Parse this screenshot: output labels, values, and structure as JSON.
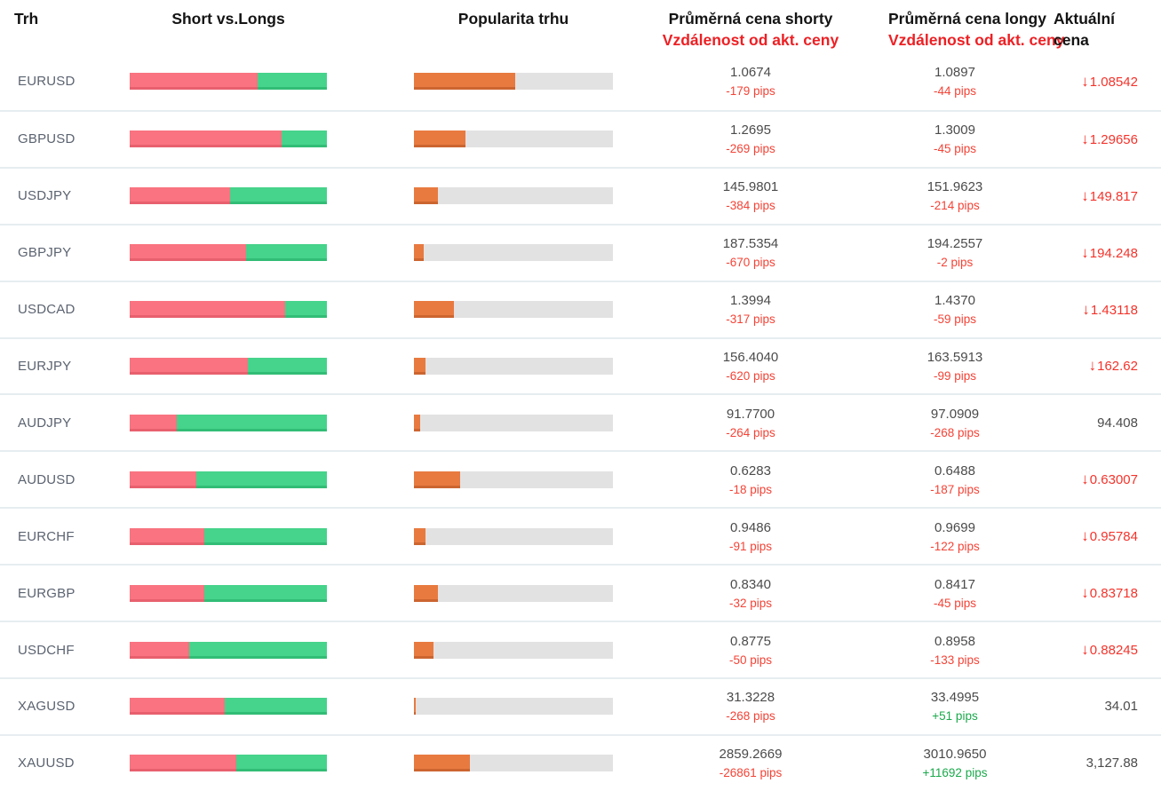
{
  "header": {
    "col_market": "Trh",
    "col_short_vs_longs": "Short vs.Longs",
    "col_popularity": "Popularita trhu",
    "col_avg_short_line1": "Průměrná cena shorty",
    "col_avg_short_line2": "Vzdálenost od akt. ceny",
    "col_avg_long_line1": "Průměrná cena longy",
    "col_avg_long_line2": "Vzdálenost od akt. ceny",
    "col_current_line1": "Aktuální",
    "col_current_line2": "cena"
  },
  "colors": {
    "bar_short_red": "#f97380",
    "bar_long_green": "#46d38b",
    "bar_popularity_orange": "#e87a40",
    "bar_track_gray": "#e2e2e2",
    "pips_negative_red": "#f44336",
    "pips_positive_green": "#1ba94c",
    "header_subtitle_red": "#ed2024",
    "current_price_down_red": "#f4332b",
    "price_text": "#4b4b4b",
    "market_label_text": "#5b6370"
  },
  "icons": {
    "down_arrow": "↓"
  },
  "rows": [
    {
      "market": "EURUSD",
      "short_pct": 65,
      "popularity_pct": 51,
      "avg_short_price": "1.0674",
      "avg_short_pips": "-179 pips",
      "avg_long_price": "1.0897",
      "avg_long_pips": "-44 pips",
      "current_price": "1.08542",
      "current_dir": "down"
    },
    {
      "market": "GBPUSD",
      "short_pct": 77,
      "popularity_pct": 26,
      "avg_short_price": "1.2695",
      "avg_short_pips": "-269 pips",
      "avg_long_price": "1.3009",
      "avg_long_pips": "-45 pips",
      "current_price": "1.29656",
      "current_dir": "down"
    },
    {
      "market": "USDJPY",
      "short_pct": 51,
      "popularity_pct": 12,
      "avg_short_price": "145.9801",
      "avg_short_pips": "-384 pips",
      "avg_long_price": "151.9623",
      "avg_long_pips": "-214 pips",
      "current_price": "149.817",
      "current_dir": "down"
    },
    {
      "market": "GBPJPY",
      "short_pct": 59,
      "popularity_pct": 5,
      "avg_short_price": "187.5354",
      "avg_short_pips": "-670 pips",
      "avg_long_price": "194.2557",
      "avg_long_pips": "-2 pips",
      "current_price": "194.248",
      "current_dir": "down"
    },
    {
      "market": "USDCAD",
      "short_pct": 79,
      "popularity_pct": 20,
      "avg_short_price": "1.3994",
      "avg_short_pips": "-317 pips",
      "avg_long_price": "1.4370",
      "avg_long_pips": "-59 pips",
      "current_price": "1.43118",
      "current_dir": "down"
    },
    {
      "market": "EURJPY",
      "short_pct": 60,
      "popularity_pct": 6,
      "avg_short_price": "156.4040",
      "avg_short_pips": "-620 pips",
      "avg_long_price": "163.5913",
      "avg_long_pips": "-99 pips",
      "current_price": "162.62",
      "current_dir": "down"
    },
    {
      "market": "AUDJPY",
      "short_pct": 24,
      "popularity_pct": 3,
      "avg_short_price": "91.7700",
      "avg_short_pips": "-264 pips",
      "avg_long_price": "97.0909",
      "avg_long_pips": "-268 pips",
      "current_price": "94.408",
      "current_dir": "flat"
    },
    {
      "market": "AUDUSD",
      "short_pct": 34,
      "popularity_pct": 23,
      "avg_short_price": "0.6283",
      "avg_short_pips": "-18 pips",
      "avg_long_price": "0.6488",
      "avg_long_pips": "-187 pips",
      "current_price": "0.63007",
      "current_dir": "down"
    },
    {
      "market": "EURCHF",
      "short_pct": 38,
      "popularity_pct": 6,
      "avg_short_price": "0.9486",
      "avg_short_pips": "-91 pips",
      "avg_long_price": "0.9699",
      "avg_long_pips": "-122 pips",
      "current_price": "0.95784",
      "current_dir": "down"
    },
    {
      "market": "EURGBP",
      "short_pct": 38,
      "popularity_pct": 12,
      "avg_short_price": "0.8340",
      "avg_short_pips": "-32 pips",
      "avg_long_price": "0.8417",
      "avg_long_pips": "-45 pips",
      "current_price": "0.83718",
      "current_dir": "down"
    },
    {
      "market": "USDCHF",
      "short_pct": 30,
      "popularity_pct": 10,
      "avg_short_price": "0.8775",
      "avg_short_pips": "-50 pips",
      "avg_long_price": "0.8958",
      "avg_long_pips": "-133 pips",
      "current_price": "0.88245",
      "current_dir": "down"
    },
    {
      "market": "XAGUSD",
      "short_pct": 48,
      "popularity_pct": 1,
      "avg_short_price": "31.3228",
      "avg_short_pips": "-268 pips",
      "avg_long_price": "33.4995",
      "avg_long_pips": "+51 pips",
      "current_price": "34.01",
      "current_dir": "flat"
    },
    {
      "market": "XAUUSD",
      "short_pct": 54,
      "popularity_pct": 28,
      "avg_short_price": "2859.2669",
      "avg_short_pips": "-26861 pips",
      "avg_long_price": "3010.9650",
      "avg_long_pips": "+11692 pips",
      "current_price": "3,127.88",
      "current_dir": "flat"
    }
  ]
}
